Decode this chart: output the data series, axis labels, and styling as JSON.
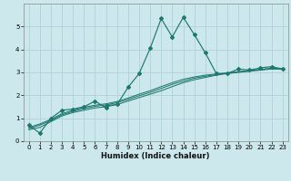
{
  "xlabel": "Humidex (Indice chaleur)",
  "bg_color": "#cce8ec",
  "grid_color": "#aacdd4",
  "line_color": "#1a7a6e",
  "xlim": [
    -0.5,
    23.5
  ],
  "ylim": [
    0,
    6
  ],
  "yticks": [
    0,
    1,
    2,
    3,
    4,
    5
  ],
  "xticks": [
    0,
    1,
    2,
    3,
    4,
    5,
    6,
    7,
    8,
    9,
    10,
    11,
    12,
    13,
    14,
    15,
    16,
    17,
    18,
    19,
    20,
    21,
    22,
    23
  ],
  "series_main": [
    [
      0,
      0.7
    ],
    [
      1,
      0.35
    ],
    [
      2,
      1.0
    ],
    [
      3,
      1.35
    ],
    [
      4,
      1.4
    ],
    [
      5,
      1.5
    ],
    [
      6,
      1.75
    ],
    [
      7,
      1.45
    ],
    [
      7,
      1.55
    ],
    [
      8,
      1.6
    ],
    [
      9,
      2.35
    ],
    [
      10,
      2.95
    ],
    [
      11,
      4.05
    ],
    [
      12,
      5.35
    ],
    [
      13,
      4.55
    ],
    [
      14,
      5.4
    ],
    [
      15,
      4.65
    ],
    [
      16,
      3.85
    ],
    [
      17,
      2.95
    ],
    [
      18,
      2.95
    ],
    [
      19,
      3.15
    ],
    [
      20,
      3.1
    ],
    [
      21,
      3.2
    ],
    [
      22,
      3.25
    ],
    [
      23,
      3.15
    ]
  ],
  "series2": [
    [
      0,
      0.5
    ],
    [
      1,
      0.6
    ],
    [
      2,
      0.85
    ],
    [
      3,
      1.1
    ],
    [
      4,
      1.25
    ],
    [
      5,
      1.35
    ],
    [
      6,
      1.45
    ],
    [
      7,
      1.5
    ],
    [
      8,
      1.6
    ],
    [
      9,
      1.75
    ],
    [
      10,
      1.9
    ],
    [
      11,
      2.05
    ],
    [
      12,
      2.2
    ],
    [
      13,
      2.38
    ],
    [
      14,
      2.55
    ],
    [
      15,
      2.68
    ],
    [
      16,
      2.78
    ],
    [
      17,
      2.88
    ],
    [
      18,
      2.95
    ],
    [
      19,
      3.0
    ],
    [
      20,
      3.05
    ],
    [
      21,
      3.1
    ],
    [
      22,
      3.15
    ],
    [
      23,
      3.15
    ]
  ],
  "series3": [
    [
      0,
      0.55
    ],
    [
      1,
      0.7
    ],
    [
      2,
      0.9
    ],
    [
      3,
      1.15
    ],
    [
      4,
      1.3
    ],
    [
      5,
      1.42
    ],
    [
      6,
      1.52
    ],
    [
      7,
      1.58
    ],
    [
      8,
      1.68
    ],
    [
      9,
      1.82
    ],
    [
      10,
      1.98
    ],
    [
      11,
      2.13
    ],
    [
      12,
      2.3
    ],
    [
      13,
      2.48
    ],
    [
      14,
      2.62
    ],
    [
      15,
      2.75
    ],
    [
      16,
      2.83
    ],
    [
      17,
      2.9
    ],
    [
      18,
      2.97
    ],
    [
      19,
      3.02
    ],
    [
      20,
      3.07
    ],
    [
      21,
      3.12
    ],
    [
      22,
      3.17
    ],
    [
      23,
      3.15
    ]
  ],
  "series4": [
    [
      0,
      0.6
    ],
    [
      1,
      0.75
    ],
    [
      2,
      0.95
    ],
    [
      3,
      1.2
    ],
    [
      4,
      1.35
    ],
    [
      5,
      1.48
    ],
    [
      6,
      1.57
    ],
    [
      7,
      1.63
    ],
    [
      8,
      1.73
    ],
    [
      9,
      1.88
    ],
    [
      10,
      2.05
    ],
    [
      11,
      2.2
    ],
    [
      12,
      2.38
    ],
    [
      13,
      2.55
    ],
    [
      14,
      2.7
    ],
    [
      15,
      2.8
    ],
    [
      16,
      2.88
    ],
    [
      17,
      2.93
    ],
    [
      18,
      2.98
    ],
    [
      19,
      3.03
    ],
    [
      20,
      3.08
    ],
    [
      21,
      3.13
    ],
    [
      22,
      3.18
    ],
    [
      23,
      3.15
    ]
  ]
}
